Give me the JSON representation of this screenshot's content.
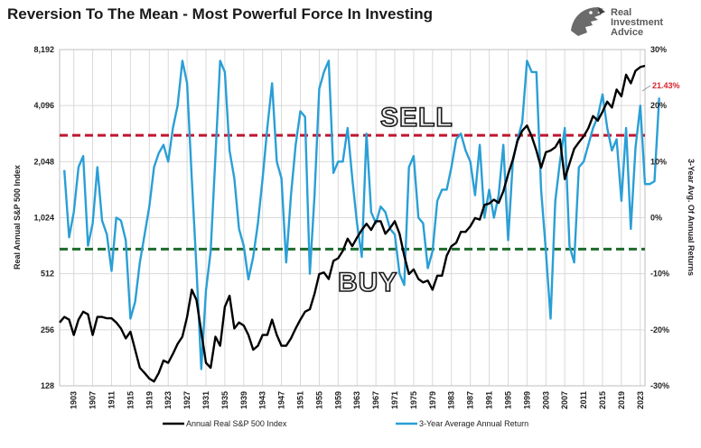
{
  "title": "Reversion To The Mean - Most Powerful Force In Investing",
  "logo": {
    "line1": "Real",
    "line2": "Investment",
    "line3": "Advice",
    "icon": "eagle-head-icon"
  },
  "colors": {
    "price": "#000000",
    "returns": "#2a9fd6",
    "sell_line": "#c0152f",
    "buy_line": "#1e6b2e",
    "callout": "#d8232a",
    "grid": "#d9d9d9"
  },
  "chart_data": {
    "type": "line",
    "x_range": [
      1900,
      2024
    ],
    "x_ticks": [
      "1903",
      "1907",
      "1911",
      "1915",
      "1919",
      "1923",
      "1927",
      "1931",
      "1935",
      "1939",
      "1943",
      "1947",
      "1951",
      "1955",
      "1959",
      "1963",
      "1967",
      "1971",
      "1975",
      "1979",
      "1983",
      "1987",
      "1991",
      "1995",
      "1999",
      "2003",
      "2007",
      "2011",
      "2015",
      "2019",
      "2023"
    ],
    "y_left": {
      "label": "Real Annual S&P 500 Index",
      "scale": "log2",
      "range": [
        128,
        8192
      ],
      "ticks": [
        "128",
        "256",
        "512",
        "1,024",
        "2,048",
        "4,096",
        "8,192"
      ]
    },
    "y_right": {
      "label": "3-Year Avg. Of Annual Returns",
      "range": [
        -30,
        30
      ],
      "ticks": [
        "-30%",
        "-20%",
        "-10%",
        "0%",
        "10%",
        "20%",
        "30%"
      ]
    },
    "annotations": {
      "sell": "SELL",
      "buy": "BUY",
      "callout": "21.43%"
    },
    "reference_lines": {
      "sell_return": 14.7,
      "buy_return": -5.6
    },
    "series": [
      {
        "name": "Annual Real S&P 500 Index",
        "axis": "left",
        "start_year": 1900,
        "values": [
          280,
          300,
          290,
          240,
          290,
          320,
          310,
          240,
          300,
          300,
          295,
          295,
          280,
          260,
          230,
          250,
          200,
          160,
          150,
          140,
          135,
          150,
          175,
          170,
          190,
          215,
          235,
          300,
          420,
          370,
          250,
          170,
          160,
          235,
          210,
          340,
          390,
          260,
          280,
          270,
          240,
          200,
          210,
          240,
          240,
          290,
          240,
          210,
          210,
          230,
          260,
          290,
          320,
          330,
          400,
          510,
          520,
          480,
          600,
          620,
          680,
          790,
          720,
          800,
          880,
          950,
          880,
          980,
          980,
          840,
          900,
          980,
          840,
          640,
          510,
          540,
          480,
          460,
          470,
          420,
          500,
          500,
          640,
          720,
          750,
          860,
          860,
          920,
          1020,
          1000,
          1200,
          1220,
          1280,
          1230,
          1420,
          1750,
          2100,
          2650,
          3000,
          3200,
          2800,
          2350,
          1900,
          2300,
          2350,
          2450,
          2700,
          1650,
          2000,
          2400,
          2600,
          2800,
          3100,
          3600,
          3400,
          3800,
          4300,
          4000,
          5000,
          4600,
          6000,
          5400,
          6300,
          6600,
          6700
        ]
      },
      {
        "name": "3-Year Average Annual Return",
        "axis": "right",
        "start_year": 1901,
        "values": [
          8.5,
          -3.5,
          1,
          9,
          11,
          -5,
          -1,
          9,
          -0.5,
          -3,
          -9.5,
          0,
          -0.5,
          -4,
          -18,
          -15,
          -8,
          -3,
          2,
          9,
          11.5,
          13,
          10,
          16,
          20,
          28,
          24,
          7,
          -9,
          -27,
          -13,
          -6,
          11,
          28,
          26,
          12,
          7,
          -2,
          -5,
          -11,
          -7,
          -1,
          7,
          16,
          24,
          10,
          7,
          -8,
          4,
          13,
          19,
          18,
          -10,
          4,
          23,
          26,
          28,
          8,
          10,
          10,
          16,
          7,
          -1,
          -7,
          15,
          1,
          -1,
          2,
          1,
          -2,
          -3,
          -10,
          -12,
          9,
          11,
          0,
          -1,
          -9,
          -6,
          3,
          5,
          5,
          9,
          14,
          15,
          12,
          10,
          4,
          13,
          0,
          5,
          0,
          4,
          13,
          -4,
          10,
          14,
          17,
          28,
          26,
          26,
          5,
          -6,
          -18,
          3,
          10,
          16,
          -5,
          -8,
          9,
          10,
          13,
          16,
          18,
          22,
          16,
          12,
          14,
          3,
          16,
          -2,
          12.5,
          20,
          6,
          6,
          6.5,
          21.43
        ]
      }
    ]
  }
}
